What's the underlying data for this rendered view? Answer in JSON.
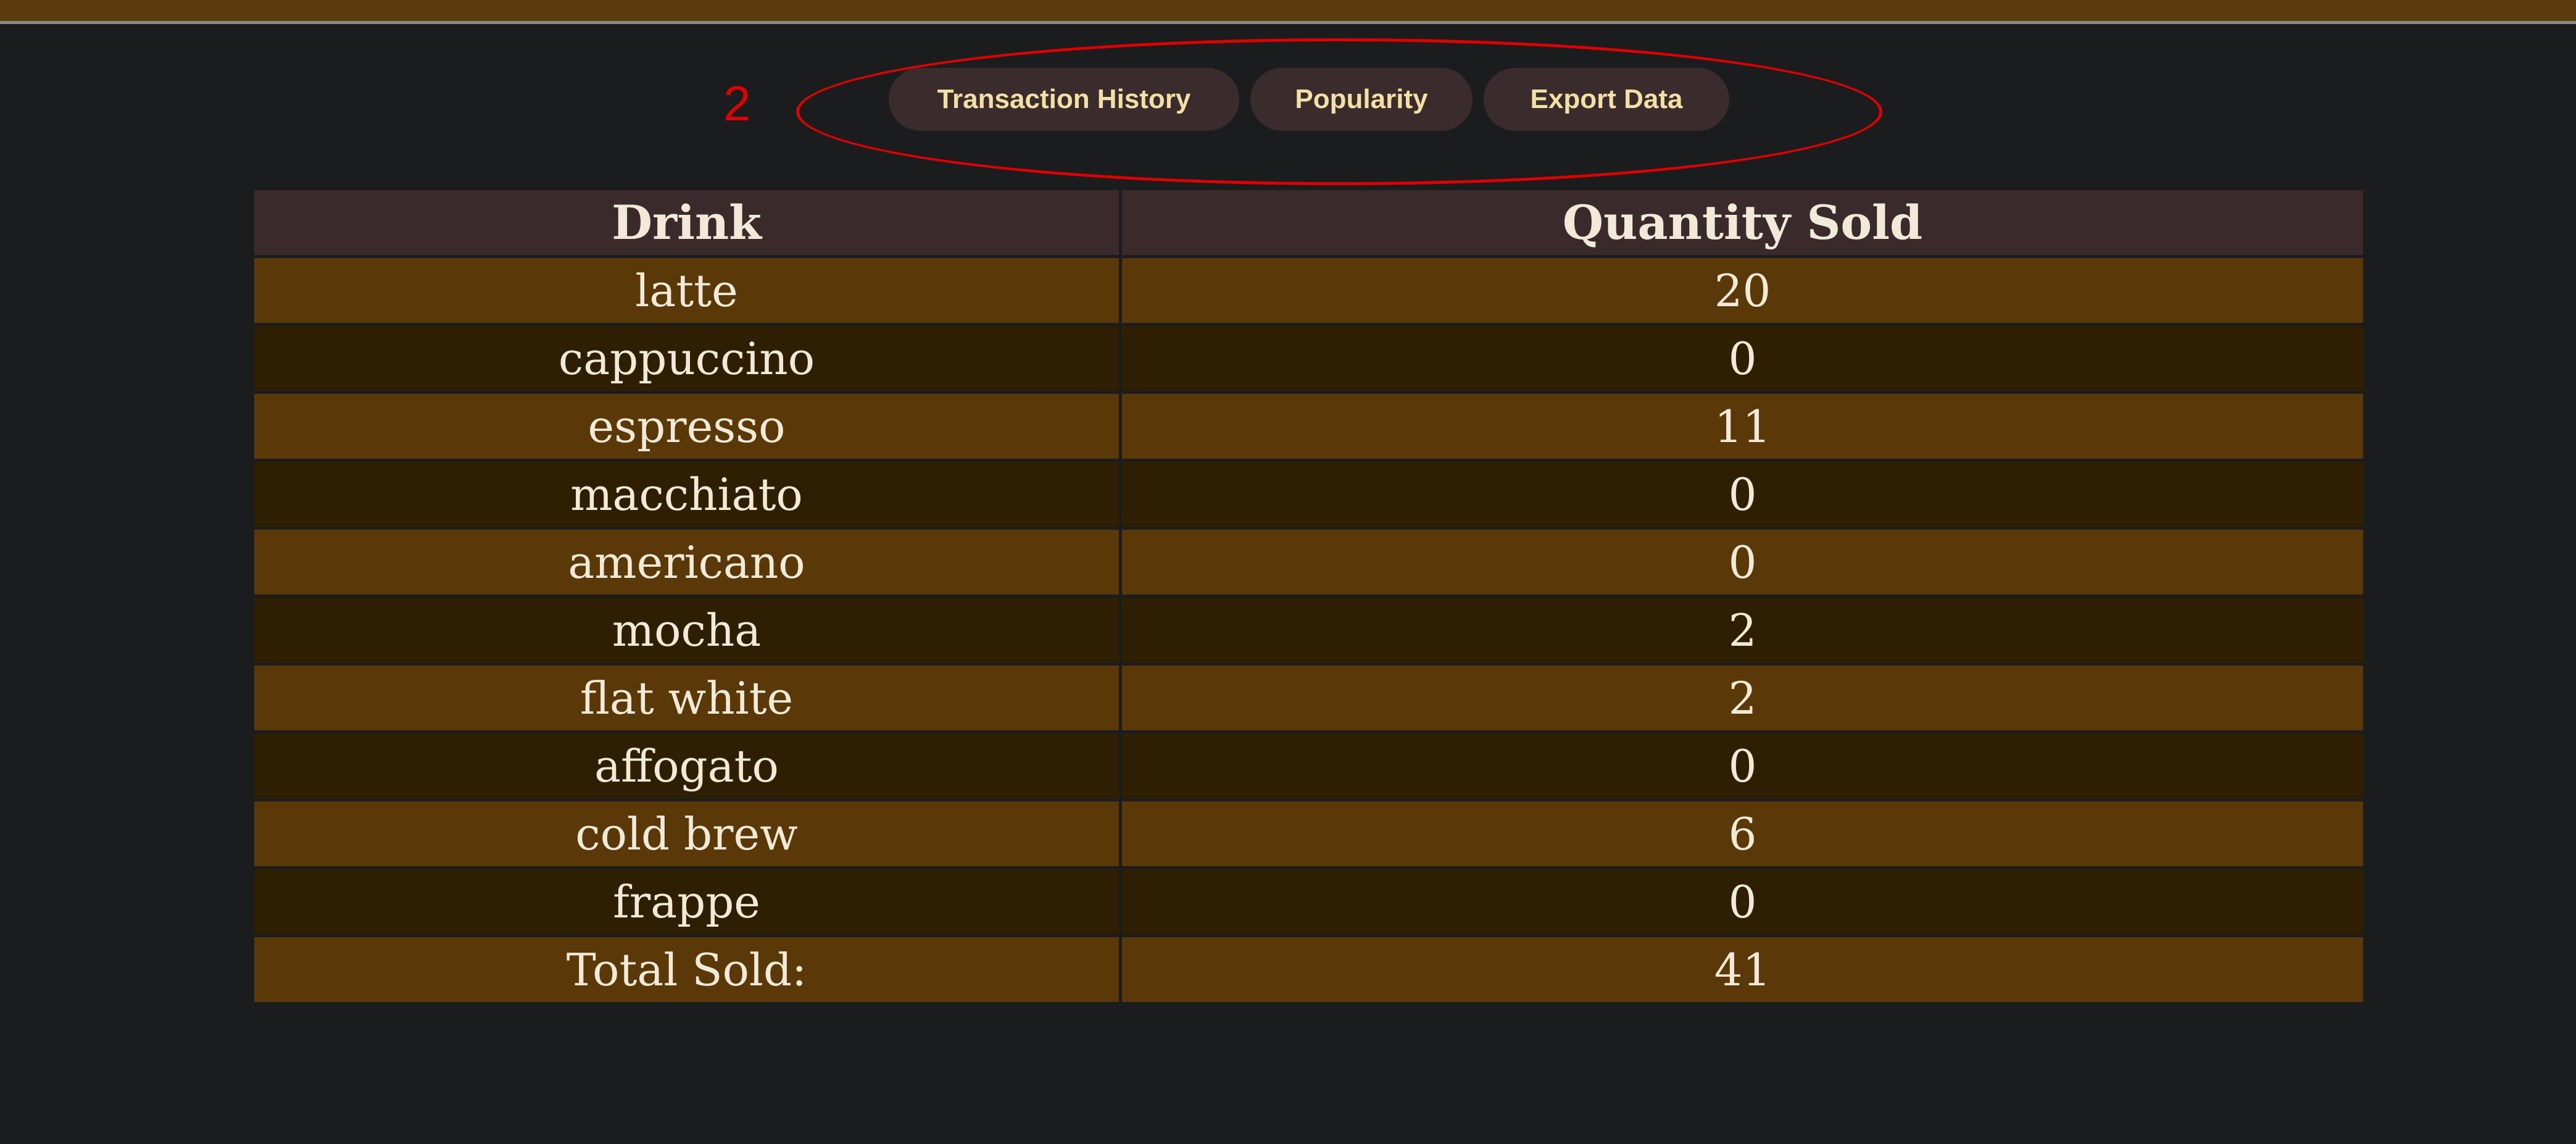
{
  "annotation": {
    "number": "2"
  },
  "toolbar": {
    "buttons": [
      {
        "label": "Transaction History"
      },
      {
        "label": "Popularity"
      },
      {
        "label": "Export Data"
      }
    ]
  },
  "table": {
    "headers": [
      "Drink",
      "Quantity Sold"
    ],
    "rows": [
      {
        "drink": "latte",
        "qty": "20"
      },
      {
        "drink": "cappuccino",
        "qty": "0"
      },
      {
        "drink": "espresso",
        "qty": "11"
      },
      {
        "drink": "macchiato",
        "qty": "0"
      },
      {
        "drink": "americano",
        "qty": "0"
      },
      {
        "drink": "mocha",
        "qty": "2"
      },
      {
        "drink": "flat white",
        "qty": "2"
      },
      {
        "drink": "affogato",
        "qty": "0"
      },
      {
        "drink": "cold brew",
        "qty": "6"
      },
      {
        "drink": "frappe",
        "qty": "0"
      }
    ],
    "total": {
      "label": "Total Sold:",
      "qty": "41"
    }
  },
  "colors": {
    "background": "#1b1c1e",
    "top_bar": "#5b3a0c",
    "annotation": "#e00000",
    "button_bg": "#3a2c2c",
    "button_text": "#f4dfa6",
    "header_bg": "#3b2a2b",
    "row_light": "#5b3808",
    "row_dark": "#2f1f02"
  }
}
